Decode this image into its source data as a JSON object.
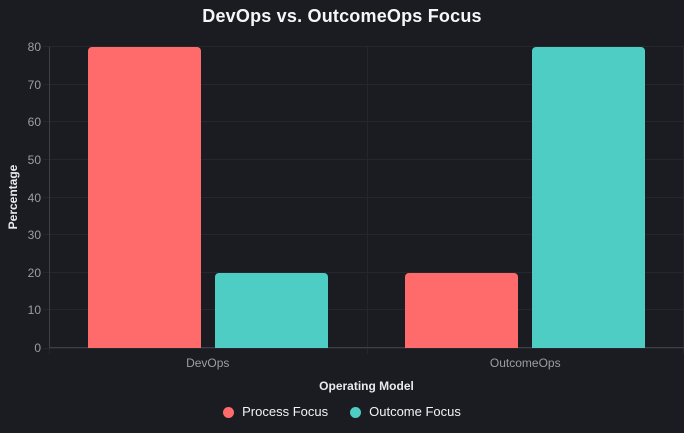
{
  "chart_data": {
    "type": "bar",
    "title": "DevOps vs. OutcomeOps Focus",
    "xlabel": "Operating Model",
    "ylabel": "Percentage",
    "categories": [
      "DevOps",
      "OutcomeOps"
    ],
    "series": [
      {
        "name": "Process Focus",
        "color": "#ff6b6b",
        "values": [
          80,
          20
        ]
      },
      {
        "name": "Outcome Focus",
        "color": "#4ecdc4",
        "values": [
          20,
          80
        ]
      }
    ],
    "ylim": [
      0,
      80
    ],
    "yticks": [
      0,
      10,
      20,
      30,
      40,
      50,
      60,
      70,
      80
    ],
    "grid": true,
    "legend_position": "bottom"
  },
  "colors": {
    "background": "#1b1c21",
    "grid": "#26272c",
    "axis": "#3d3f45",
    "tick_text": "#9b9ea3",
    "axis_title_text": "#e8eaed",
    "title_text": "#f5f6f7",
    "legend_text": "#f1f3f4"
  }
}
